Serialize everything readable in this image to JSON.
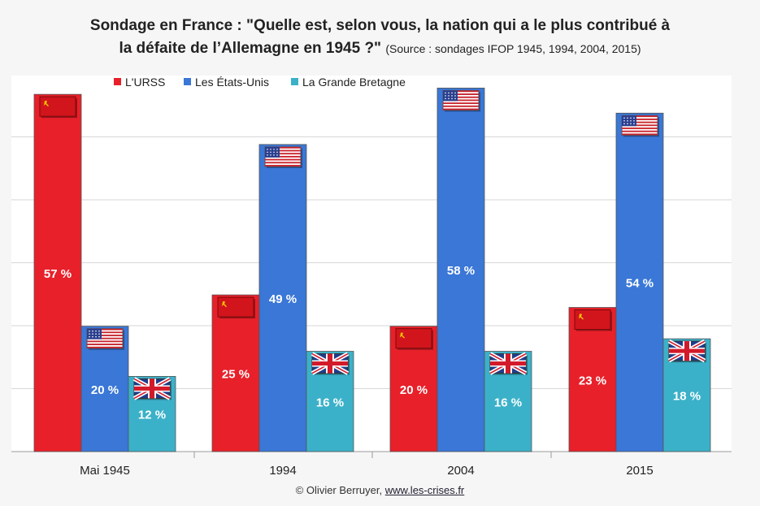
{
  "title": {
    "line1": "Sondage en France : \"Quelle est, selon vous, la nation qui a le plus contribué à",
    "line2": "la défaite de l’Allemagne en 1945 ?\"",
    "source": "(Source : sondages IFOP 1945, 1994, 2004, 2015)"
  },
  "footer": {
    "credit": "© Olivier Berruyer,",
    "link": "www.les-crises.fr"
  },
  "chart_data": {
    "type": "bar",
    "title": "Sondage en France : \"Quelle est, selon vous, la nation qui a le plus contribué à la défaite de l’Allemagne en 1945 ?\"",
    "categories": [
      "Mai 1945",
      "1994",
      "2004",
      "2015"
    ],
    "series": [
      {
        "name": "L'URSS",
        "values": [
          57,
          25,
          20,
          23
        ],
        "labels": [
          "57 %",
          "25 %",
          "20 %",
          "23 %"
        ],
        "color": "#e8202a",
        "flag": "ussr-flag"
      },
      {
        "name": "Les États-Unis",
        "values": [
          20,
          49,
          58,
          54
        ],
        "labels": [
          "20 %",
          "49 %",
          "58 %",
          "54 %"
        ],
        "color": "#3a77d6",
        "flag": "usa-flag"
      },
      {
        "name": "La Grande Bretagne",
        "values": [
          12,
          16,
          16,
          18
        ],
        "labels": [
          "12 %",
          "16 %",
          "16 %",
          "18 %"
        ],
        "color": "#3bb1c9",
        "flag": "uk-flag"
      }
    ],
    "ylim": [
      0,
      60
    ],
    "grid": true,
    "legend": "top-left",
    "xlabel": "",
    "ylabel": ""
  }
}
